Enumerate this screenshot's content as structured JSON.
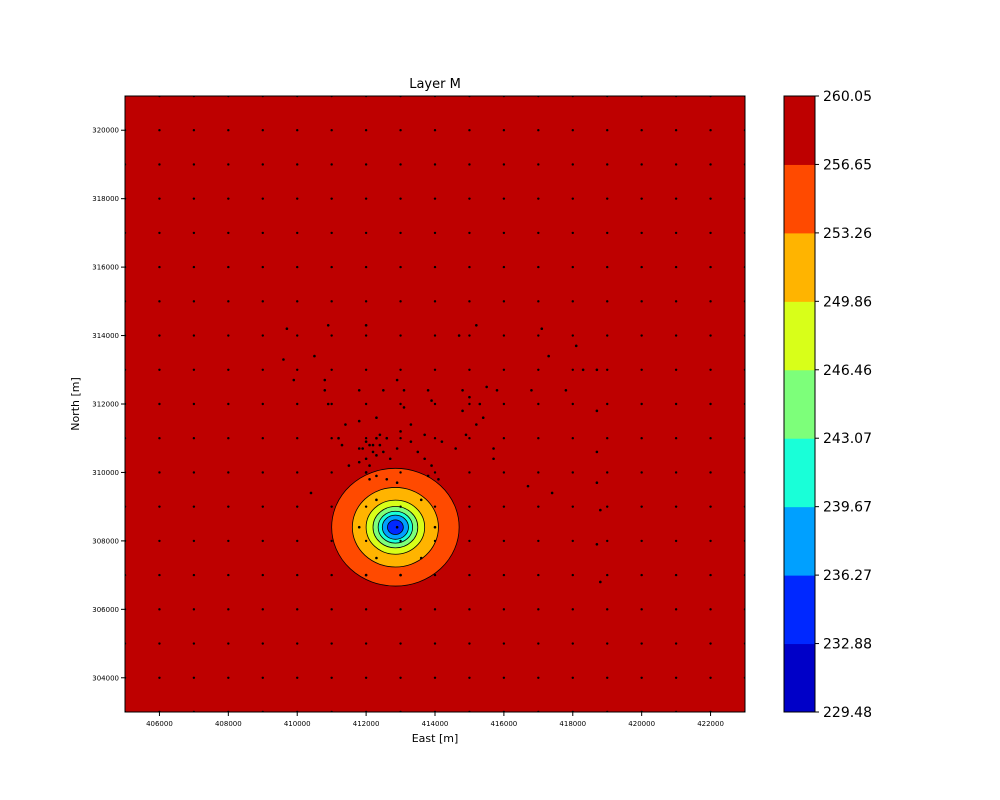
{
  "chart_data": {
    "type": "contour",
    "title": "Layer M",
    "xlabel": "East [m]",
    "ylabel": "North [m]",
    "xlim": [
      405000,
      423000
    ],
    "ylim": [
      303000,
      321000
    ],
    "xticks": [
      "406000",
      "408000",
      "410000",
      "412000",
      "414000",
      "416000",
      "418000",
      "420000",
      "422000"
    ],
    "yticks": [
      "304000",
      "306000",
      "308000",
      "310000",
      "312000",
      "314000",
      "316000",
      "318000",
      "320000"
    ],
    "grid": false,
    "contour_center": {
      "x": 412850,
      "y": 308400
    },
    "contour_radii_m": [
      1850,
      1250,
      850,
      650,
      500,
      380,
      230
    ],
    "colorbar": {
      "range": [
        229.48,
        260.05
      ],
      "labels": [
        "260.05",
        "256.65",
        "253.26",
        "249.86",
        "246.46",
        "243.07",
        "239.67",
        "236.27",
        "232.88",
        "229.48"
      ],
      "colors": [
        "#0000c8",
        "#0028ff",
        "#00a0ff",
        "#19ffd8",
        "#7dff7a",
        "#d8ff19",
        "#ffb400",
        "#ff4a00",
        "#be0000"
      ]
    },
    "points": {
      "grid_x_range": [
        405000,
        423000
      ],
      "grid_y_range": [
        303000,
        321000
      ],
      "grid_step": 1000,
      "scattered": [
        [
          409700,
          314200
        ],
        [
          410500,
          313400
        ],
        [
          410900,
          314300
        ],
        [
          409600,
          313300
        ],
        [
          409900,
          312700
        ],
        [
          410800,
          312700
        ],
        [
          410800,
          312400
        ],
        [
          410900,
          312000
        ],
        [
          411800,
          312400
        ],
        [
          411400,
          311400
        ],
        [
          411800,
          311500
        ],
        [
          412300,
          311600
        ],
        [
          412500,
          312400
        ],
        [
          412900,
          312700
        ],
        [
          413100,
          312400
        ],
        [
          413100,
          311900
        ],
        [
          413800,
          312400
        ],
        [
          413900,
          312100
        ],
        [
          414800,
          312400
        ],
        [
          415000,
          312200
        ],
        [
          415300,
          312000
        ],
        [
          415500,
          312500
        ],
        [
          415800,
          312400
        ],
        [
          416800,
          312400
        ],
        [
          417800,
          312400
        ],
        [
          418700,
          311800
        ],
        [
          418700,
          313000
        ],
        [
          418300,
          313000
        ],
        [
          418100,
          313700
        ],
        [
          417100,
          314200
        ],
        [
          417300,
          313400
        ],
        [
          415200,
          314300
        ],
        [
          414700,
          314000
        ],
        [
          412000,
          314300
        ],
        [
          411200,
          311000
        ],
        [
          411300,
          310800
        ],
        [
          411800,
          310700
        ],
        [
          411900,
          310700
        ],
        [
          412000,
          310900
        ],
        [
          412100,
          310800
        ],
        [
          412200,
          310800
        ],
        [
          412300,
          311000
        ],
        [
          412400,
          311100
        ],
        [
          412600,
          311000
        ],
        [
          412400,
          310800
        ],
        [
          412500,
          310600
        ],
        [
          412300,
          310500
        ],
        [
          412000,
          310400
        ],
        [
          412100,
          310200
        ],
        [
          411500,
          310200
        ],
        [
          411800,
          310300
        ],
        [
          412200,
          310600
        ],
        [
          412700,
          310400
        ],
        [
          412900,
          310700
        ],
        [
          413000,
          311200
        ],
        [
          413300,
          310900
        ],
        [
          413500,
          310600
        ],
        [
          413700,
          310400
        ],
        [
          413900,
          310200
        ],
        [
          413700,
          311100
        ],
        [
          414200,
          310900
        ],
        [
          414800,
          311800
        ],
        [
          415200,
          311400
        ],
        [
          415400,
          311600
        ],
        [
          415700,
          310700
        ],
        [
          415700,
          310400
        ],
        [
          416700,
          309600
        ],
        [
          417400,
          309400
        ],
        [
          418700,
          309700
        ],
        [
          418700,
          310600
        ],
        [
          418800,
          308900
        ],
        [
          418700,
          307900
        ],
        [
          418800,
          306800
        ],
        [
          412000,
          310000
        ],
        [
          412100,
          309800
        ],
        [
          412300,
          309900
        ],
        [
          412600,
          309800
        ],
        [
          412900,
          309700
        ],
        [
          413800,
          309900
        ],
        [
          414100,
          309800
        ],
        [
          412900,
          308400
        ],
        [
          412300,
          309200
        ],
        [
          413600,
          309200
        ],
        [
          411800,
          308400
        ],
        [
          414000,
          308400
        ],
        [
          412300,
          307500
        ],
        [
          413600,
          307500
        ],
        [
          412000,
          307000
        ],
        [
          413000,
          307000
        ],
        [
          414900,
          311100
        ],
        [
          413300,
          311400
        ],
        [
          410400,
          309400
        ],
        [
          414600,
          310700
        ]
      ]
    }
  }
}
